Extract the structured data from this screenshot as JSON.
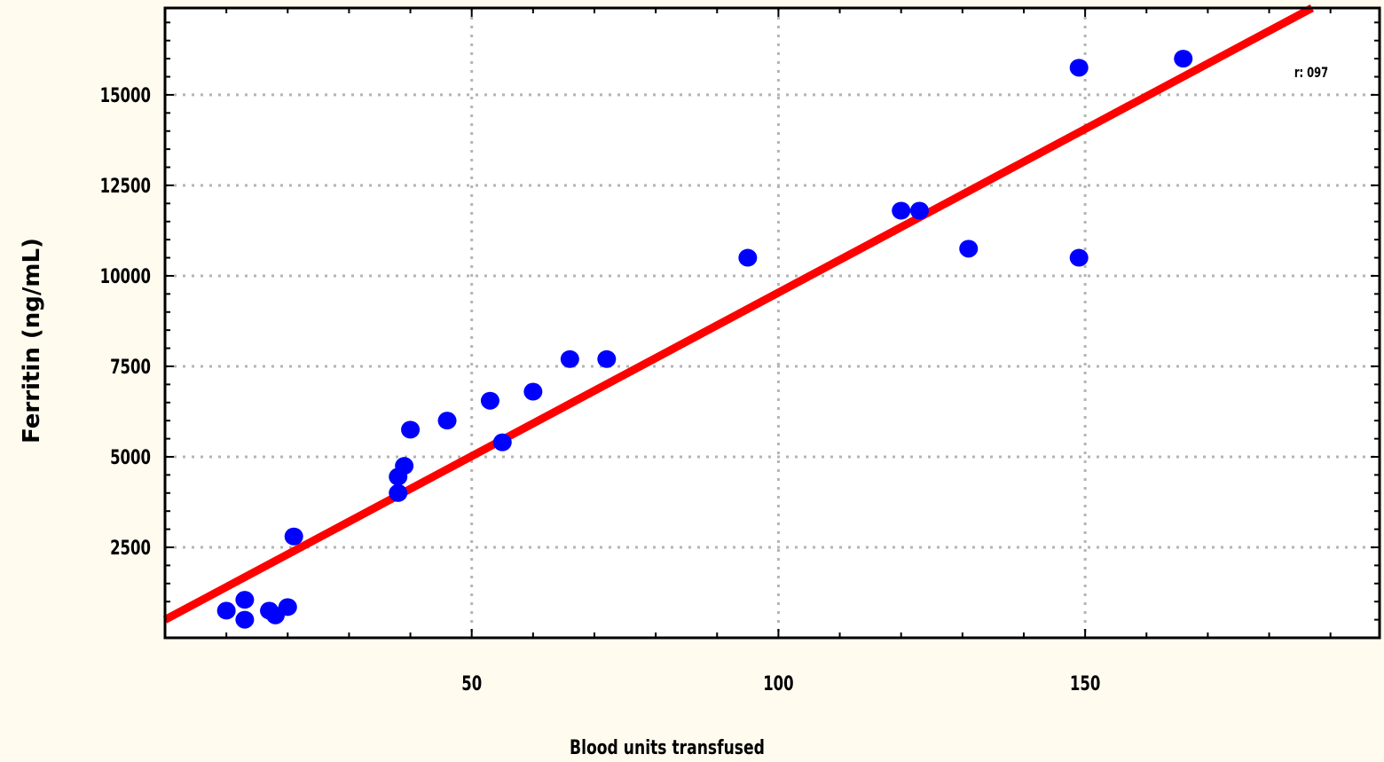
{
  "chart_data": {
    "type": "scatter",
    "title": "",
    "xlabel": "Blood units transfused",
    "ylabel": "Ferritin (ng/mL)",
    "xlim": [
      0,
      198
    ],
    "ylim": [
      0,
      17400
    ],
    "x_ticks": [
      50,
      100,
      150
    ],
    "x_tick_labels": [
      "50",
      "100",
      "150"
    ],
    "y_ticks": [
      2500,
      5000,
      7500,
      10000,
      12500,
      15000
    ],
    "y_tick_labels": [
      "2500",
      "5000",
      "7500",
      "10000",
      "12500",
      "15000"
    ],
    "grid": true,
    "annotation": "r: 097",
    "series": [
      {
        "values": [
          {
            "x": 10,
            "y": 750
          },
          {
            "x": 13,
            "y": 1050
          },
          {
            "x": 13,
            "y": 500
          },
          {
            "x": 17,
            "y": 750
          },
          {
            "x": 18,
            "y": 620
          },
          {
            "x": 20,
            "y": 850
          },
          {
            "x": 21,
            "y": 2800
          },
          {
            "x": 38,
            "y": 4000
          },
          {
            "x": 38,
            "y": 4450
          },
          {
            "x": 39,
            "y": 4750
          },
          {
            "x": 40,
            "y": 5750
          },
          {
            "x": 46,
            "y": 6000
          },
          {
            "x": 53,
            "y": 6550
          },
          {
            "x": 55,
            "y": 5400
          },
          {
            "x": 60,
            "y": 6800
          },
          {
            "x": 66,
            "y": 7700
          },
          {
            "x": 72,
            "y": 7700
          },
          {
            "x": 95,
            "y": 10500
          },
          {
            "x": 120,
            "y": 11800
          },
          {
            "x": 123,
            "y": 11800
          },
          {
            "x": 131,
            "y": 10750
          },
          {
            "x": 149,
            "y": 10500
          },
          {
            "x": 149,
            "y": 15750
          },
          {
            "x": 166,
            "y": 16000
          }
        ]
      }
    ],
    "trendline": {
      "type": "linear",
      "from": {
        "x": 0,
        "y": 500
      },
      "to": {
        "x": 187,
        "y": 17400
      }
    },
    "colors": {
      "points": "#0000ff",
      "trendline": "#ff0000",
      "grid": "#b4b4b4",
      "background": "#fffbef",
      "plot_background": "#ffffff"
    }
  }
}
